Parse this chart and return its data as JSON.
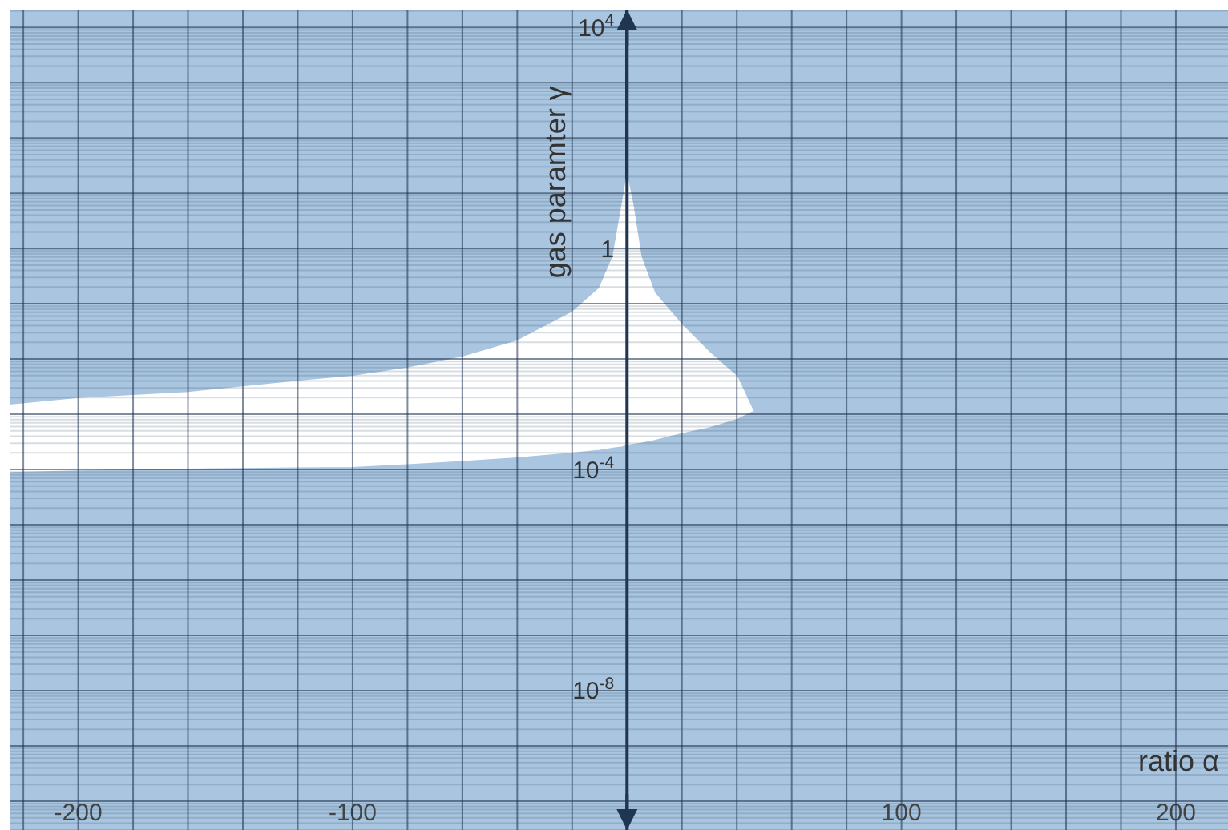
{
  "chart_data": {
    "type": "area",
    "xlabel": "ratio α",
    "ylabel": "gas paramter γ",
    "x": [
      -225,
      -200,
      -160,
      -120,
      -100,
      -80,
      -60,
      -40,
      -20,
      -10,
      -5,
      -2,
      -1,
      0,
      1,
      2,
      5,
      10,
      20,
      30,
      40,
      46
    ],
    "series": [
      {
        "color": "#ffffff",
        "values": [
          0.00145,
          0.0019,
          0.00245,
          0.0039,
          0.0048,
          0.0068,
          0.0107,
          0.021,
          0.069,
          0.19,
          0.72,
          5.2,
          10,
          20,
          11,
          6.5,
          0.72,
          0.155,
          0.041,
          0.013,
          0.0048,
          0.0011
        ]
      },
      {
        "color": "#a9c5e0",
        "values": [
          8.7e-05,
          9.3e-05,
          0.0001,
          0.000105,
          0.000107,
          0.00012,
          0.000138,
          0.00016,
          0.000195,
          0.00022,
          0.00024,
          0.00025,
          0.00026,
          0.00027,
          0.000275,
          0.00028,
          0.000295,
          0.00033,
          0.00044,
          0.00056,
          0.00079,
          0.0011
        ]
      }
    ],
    "xlim": [
      -225,
      219
    ],
    "xticks": [
      -200,
      -100,
      100,
      200
    ],
    "ylim": [
      3e-11,
      21000
    ],
    "yticks": [
      {
        "value": 10000,
        "label": "10$^{4}$"
      },
      1,
      {
        "value": 0.0001,
        "label": "10$^{-4}$"
      },
      {
        "value": 1e-08,
        "label": "10$^{-8}$"
      }
    ],
    "log": "y",
    "grid": true
  }
}
